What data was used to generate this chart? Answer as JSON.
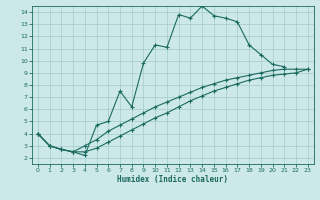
{
  "xlabel": "Humidex (Indice chaleur)",
  "bg_color": "#cce8e8",
  "line_color": "#1a6b5e",
  "grid_color": "#aacfcf",
  "xlim": [
    -0.5,
    23.5
  ],
  "ylim": [
    1.5,
    14.5
  ],
  "xticks": [
    0,
    1,
    2,
    3,
    4,
    5,
    6,
    7,
    8,
    9,
    10,
    11,
    12,
    13,
    14,
    15,
    16,
    17,
    18,
    19,
    20,
    21,
    22,
    23
  ],
  "yticks": [
    2,
    3,
    4,
    5,
    6,
    7,
    8,
    9,
    10,
    11,
    12,
    13,
    14
  ],
  "line1_x": [
    0,
    1,
    2,
    3,
    4,
    5,
    6,
    7,
    8,
    9,
    10,
    11,
    12,
    13,
    14,
    15,
    16,
    17,
    18,
    19,
    20,
    21
  ],
  "line1_y": [
    4,
    3,
    2.7,
    2.5,
    2.2,
    4.7,
    5.0,
    7.5,
    6.2,
    9.8,
    11.3,
    11.1,
    13.8,
    13.5,
    14.5,
    13.7,
    13.5,
    13.2,
    11.3,
    10.5,
    9.7,
    9.5
  ],
  "line2_x": [
    0,
    1,
    2,
    3,
    4,
    5,
    6,
    7,
    8,
    9,
    10,
    11,
    12,
    13,
    14,
    15,
    16,
    17,
    18,
    19,
    20,
    21,
    22,
    23
  ],
  "line2_y": [
    4,
    3,
    2.7,
    2.5,
    3.0,
    3.5,
    4.2,
    4.7,
    5.2,
    5.7,
    6.2,
    6.6,
    7.0,
    7.4,
    7.8,
    8.1,
    8.4,
    8.6,
    8.8,
    9.0,
    9.2,
    9.3,
    9.3,
    9.3
  ],
  "line3_x": [
    0,
    1,
    2,
    3,
    4,
    5,
    6,
    7,
    8,
    9,
    10,
    11,
    12,
    13,
    14,
    15,
    16,
    17,
    18,
    19,
    20,
    21,
    22,
    23
  ],
  "line3_y": [
    4,
    3,
    2.7,
    2.5,
    2.5,
    2.8,
    3.3,
    3.8,
    4.3,
    4.8,
    5.3,
    5.7,
    6.2,
    6.7,
    7.1,
    7.5,
    7.8,
    8.1,
    8.4,
    8.6,
    8.8,
    8.9,
    9.0,
    9.3
  ]
}
